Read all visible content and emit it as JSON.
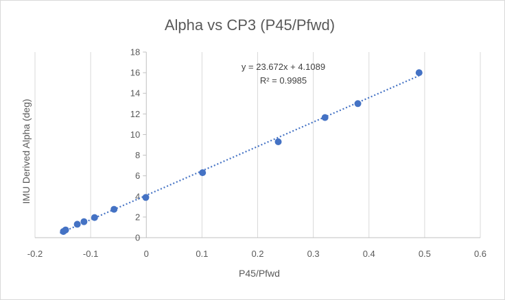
{
  "chart_data": {
    "type": "scatter",
    "title": "Alpha vs CP3 (P45/Pfwd)",
    "xlabel": "P45/Pfwd",
    "ylabel": "IMU Derived Alpha (deg)",
    "xlim": [
      -0.2,
      0.6
    ],
    "ylim": [
      0,
      18
    ],
    "x_ticks": [
      "-0.2",
      "-0.1",
      "0",
      "0.1",
      "0.2",
      "0.3",
      "0.4",
      "0.5",
      "0.6"
    ],
    "y_ticks": [
      "0",
      "2",
      "4",
      "6",
      "8",
      "10",
      "12",
      "14",
      "16",
      "18"
    ],
    "grid": "vertical",
    "series": [
      {
        "color": "#4472c4",
        "points": [
          {
            "x": -0.149,
            "y": 0.6
          },
          {
            "x": -0.145,
            "y": 0.75
          },
          {
            "x": -0.124,
            "y": 1.3
          },
          {
            "x": -0.112,
            "y": 1.55
          },
          {
            "x": -0.093,
            "y": 1.95
          },
          {
            "x": -0.058,
            "y": 2.75
          },
          {
            "x": -0.001,
            "y": 3.9
          },
          {
            "x": 0.101,
            "y": 6.3
          },
          {
            "x": 0.237,
            "y": 9.3
          },
          {
            "x": 0.321,
            "y": 11.65
          },
          {
            "x": 0.38,
            "y": 13.0
          },
          {
            "x": 0.49,
            "y": 16.0
          }
        ]
      }
    ],
    "trendline": {
      "slope": 23.672,
      "intercept": 4.1089,
      "x_range": [
        -0.155,
        0.49
      ],
      "style": "dotted",
      "color": "#4472c4",
      "equation": "y = 23.672x + 4.1089",
      "r_squared": "R² = 0.9985"
    }
  }
}
